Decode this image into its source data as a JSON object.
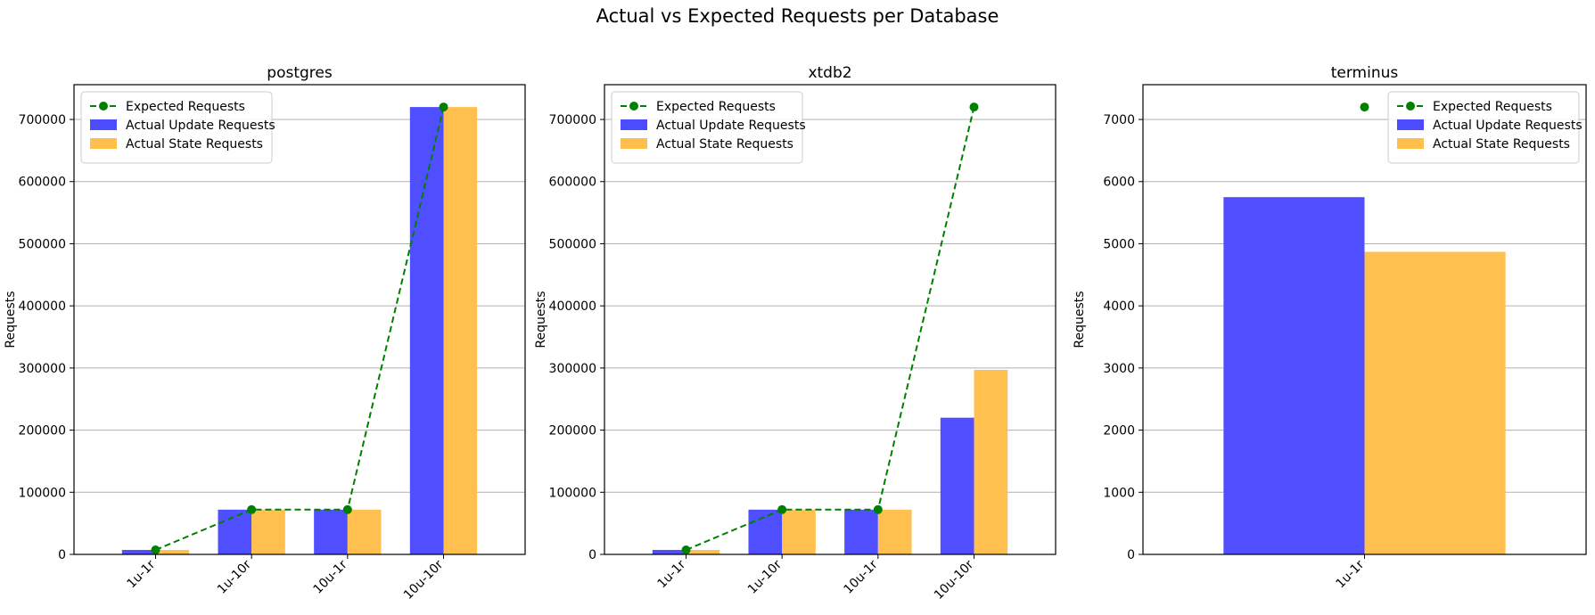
{
  "title": "Actual vs Expected Requests per Database",
  "colors": {
    "update": "#4B4BFF",
    "state": "#FFBF4D",
    "expected": "#008000",
    "grid": "#b0b0b0"
  },
  "chart_data": [
    {
      "type": "bar",
      "title": "postgres",
      "ylabel": "Requests",
      "categories": [
        "1u-1r",
        "1u-10r",
        "10u-1r",
        "10u-10r"
      ],
      "ylim": [
        0,
        756000
      ],
      "yticks": [
        0,
        100000,
        200000,
        300000,
        400000,
        500000,
        600000,
        700000
      ],
      "grid": true,
      "legend_position": "top-left",
      "series": [
        {
          "name": "Expected Requests",
          "kind": "line",
          "values": [
            7200,
            72000,
            72000,
            720000
          ]
        },
        {
          "name": "Actual Update Requests",
          "kind": "bar",
          "values": [
            7200,
            72000,
            72000,
            720000
          ]
        },
        {
          "name": "Actual State Requests",
          "kind": "bar",
          "values": [
            7200,
            72000,
            72000,
            720000
          ]
        }
      ]
    },
    {
      "type": "bar",
      "title": "xtdb2",
      "ylabel": "Requests",
      "categories": [
        "1u-1r",
        "1u-10r",
        "10u-1r",
        "10u-10r"
      ],
      "ylim": [
        0,
        756000
      ],
      "yticks": [
        0,
        100000,
        200000,
        300000,
        400000,
        500000,
        600000,
        700000
      ],
      "grid": true,
      "legend_position": "top-left",
      "series": [
        {
          "name": "Expected Requests",
          "kind": "line",
          "values": [
            7200,
            72000,
            72000,
            720000
          ]
        },
        {
          "name": "Actual Update Requests",
          "kind": "bar",
          "values": [
            7200,
            72000,
            72000,
            220000
          ]
        },
        {
          "name": "Actual State Requests",
          "kind": "bar",
          "values": [
            7200,
            72000,
            72000,
            297000
          ]
        }
      ]
    },
    {
      "type": "bar",
      "title": "terminus",
      "ylabel": "Requests",
      "categories": [
        "1u-1r"
      ],
      "ylim": [
        0,
        7560
      ],
      "yticks": [
        0,
        1000,
        2000,
        3000,
        4000,
        5000,
        6000,
        7000
      ],
      "grid": true,
      "legend_position": "top-right",
      "series": [
        {
          "name": "Expected Requests",
          "kind": "line",
          "values": [
            7200
          ]
        },
        {
          "name": "Actual Update Requests",
          "kind": "bar",
          "values": [
            5750
          ]
        },
        {
          "name": "Actual State Requests",
          "kind": "bar",
          "values": [
            4870
          ]
        }
      ]
    }
  ]
}
